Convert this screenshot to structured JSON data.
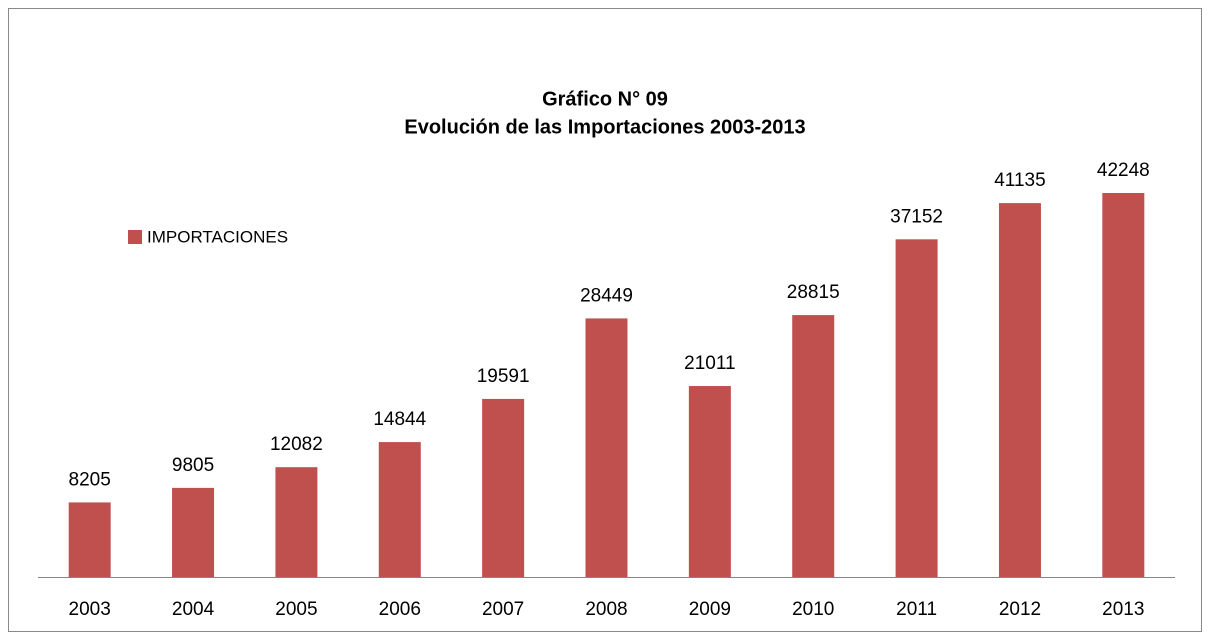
{
  "chart_data": {
    "type": "bar",
    "title": "Gráfico N° 09",
    "subtitle": "Evolución de las Importaciones 2003-2013",
    "categories": [
      "2003",
      "2004",
      "2005",
      "2006",
      "2007",
      "2008",
      "2009",
      "2010",
      "2011",
      "2012",
      "2013"
    ],
    "series": [
      {
        "name": "IMPORTACIONES",
        "color": "#c0504d",
        "values": [
          8205,
          9805,
          12082,
          14844,
          19591,
          28449,
          21011,
          28815,
          37152,
          41135,
          42248
        ]
      }
    ]
  }
}
